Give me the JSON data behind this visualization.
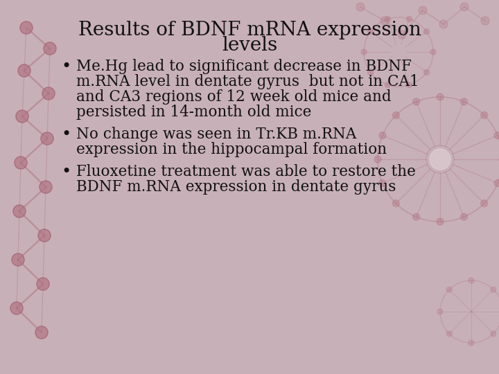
{
  "title_line1": "Results of BDNF mRNA expression",
  "title_line2": "levels",
  "bullet1_line1": "Me.Hg lead to significant decrease in BDNF",
  "bullet1_line2": "m.RNA level in dentate gyrus  but not in CA1",
  "bullet1_line3": "and CA3 regions of 12 week old mice and",
  "bullet1_line4": "persisted in 14-month old mice",
  "bullet2_line1": "No change was seen in Tr.KB m.RNA",
  "bullet2_line2": "expression in the hippocampal formation",
  "bullet3_line1": "Fluoxetine treatment was able to restore the",
  "bullet3_line2": "BDNF m.RNA expression in dentate gyrus",
  "bg_color": "#c8b0b8",
  "text_color": "#111111",
  "dna_color": "#a06070",
  "dna_node_color": "#b07080",
  "title_fontsize": 20,
  "body_fontsize": 15.5
}
